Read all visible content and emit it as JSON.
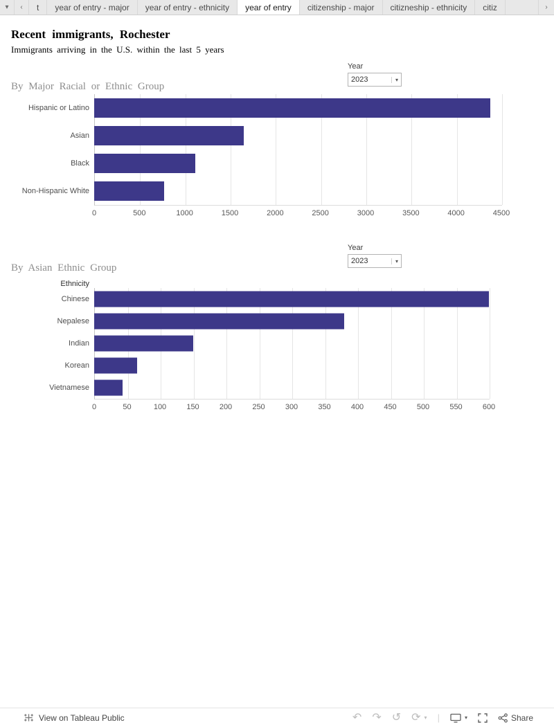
{
  "tabs": {
    "caret_glyph": "▾",
    "left_arrow_glyph": "‹",
    "right_arrow_glyph": "›",
    "items": [
      {
        "label": "t",
        "active": false
      },
      {
        "label": "year of entry - major",
        "active": false
      },
      {
        "label": "year of entry - ethnicity",
        "active": false
      },
      {
        "label": "year of entry",
        "active": true
      },
      {
        "label": "citizenship - major",
        "active": false
      },
      {
        "label": "citizneship - ethnicity",
        "active": false
      },
      {
        "label": "citiz",
        "active": false
      }
    ]
  },
  "header": {
    "title": "Recent immigrants, Rochester",
    "subtitle": "Immigrants arriving in the U.S. within the last 5 years"
  },
  "chart_data": [
    {
      "type": "bar",
      "orientation": "horizontal",
      "title": "By Major Racial or Ethnic Group",
      "categories": [
        "Hispanic or Latino",
        "Asian",
        "Black",
        "Non-Hispanic White"
      ],
      "values": [
        4380,
        1650,
        1120,
        770
      ],
      "xlim": [
        0,
        4500
      ],
      "xticks": [
        0,
        500,
        1000,
        1500,
        2000,
        2500,
        3000,
        3500,
        4000,
        4500
      ],
      "grid": "vertical light gridlines at each tick",
      "filter": {
        "label": "Year",
        "value": "2023"
      }
    },
    {
      "type": "bar",
      "orientation": "horizontal",
      "title": "By Asian Ethnic Group",
      "ylabel": "Ethnicity",
      "categories": [
        "Chinese",
        "Nepalese",
        "Indian",
        "Korean",
        "Vietnamese"
      ],
      "values": [
        600,
        380,
        150,
        65,
        43
      ],
      "xlim": [
        0,
        600
      ],
      "xticks": [
        0,
        50,
        100,
        150,
        200,
        250,
        300,
        350,
        400,
        450,
        500,
        550,
        600
      ],
      "grid": "vertical light gridlines at each tick",
      "filter": {
        "label": "Year",
        "value": "2023"
      }
    }
  ],
  "colors": {
    "bar": "#3d3889",
    "tab_bar_bg": "#e8e8e8",
    "gridline": "#e5e5e5"
  },
  "footer": {
    "brand_label": "View on Tableau Public",
    "share_label": "Share",
    "icons": {
      "undo": "↶",
      "redo": "↷",
      "replay": "↺",
      "refresh": "⟳",
      "caret": "▾",
      "separator": "|"
    }
  }
}
